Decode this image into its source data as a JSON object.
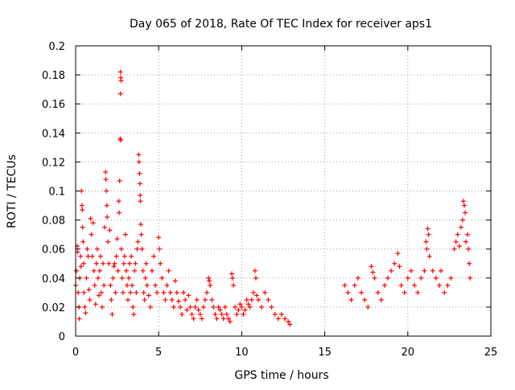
{
  "chart_data": {
    "type": "scatter",
    "title": "Day 065 of 2018, Rate Of TEC Index for receiver aps1",
    "xlabel": "GPS time / hours",
    "ylabel": "ROTI / TECUs",
    "xlim": [
      0,
      25
    ],
    "ylim": [
      0,
      0.2
    ],
    "x_ticks": [
      0,
      5,
      10,
      15,
      20,
      25
    ],
    "y_ticks": [
      0,
      0.02,
      0.04,
      0.06,
      0.08,
      0.1,
      0.12,
      0.14,
      0.16,
      0.18,
      0.2
    ],
    "x_tick_labels": [
      "0",
      "5",
      "10",
      "15",
      "20",
      "25"
    ],
    "y_tick_labels": [
      "0",
      "0.02",
      "0.04",
      "0.06",
      "0.08",
      "0.1",
      "0.12",
      "0.14",
      "0.16",
      "0.18",
      "0.2"
    ],
    "grid": true,
    "marker": "+",
    "color": "#ff0000",
    "series": [
      {
        "points": [
          [
            0.0,
            0.035
          ],
          [
            0.05,
            0.045
          ],
          [
            0.1,
            0.062
          ],
          [
            0.12,
            0.058
          ],
          [
            0.15,
            0.03
          ],
          [
            0.2,
            0.02
          ],
          [
            0.22,
            0.012
          ],
          [
            0.25,
            0.04
          ],
          [
            0.3,
            0.055
          ],
          [
            0.32,
            0.048
          ],
          [
            0.35,
            0.1
          ],
          [
            0.38,
            0.09
          ],
          [
            0.4,
            0.087
          ],
          [
            0.42,
            0.075
          ],
          [
            0.45,
            0.065
          ],
          [
            0.48,
            0.05
          ],
          [
            0.5,
            0.03
          ],
          [
            0.55,
            0.02
          ],
          [
            0.6,
            0.016
          ],
          [
            0.65,
            0.04
          ],
          [
            0.7,
            0.06
          ],
          [
            0.75,
            0.055
          ],
          [
            0.8,
            0.032
          ],
          [
            0.85,
            0.025
          ],
          [
            0.9,
            0.081
          ],
          [
            0.95,
            0.07
          ],
          [
            1.0,
            0.055
          ],
          [
            1.05,
            0.078
          ],
          [
            1.1,
            0.045
          ],
          [
            1.15,
            0.035
          ],
          [
            1.2,
            0.022
          ],
          [
            1.25,
            0.05
          ],
          [
            1.3,
            0.06
          ],
          [
            1.35,
            0.04
          ],
          [
            1.4,
            0.028
          ],
          [
            1.45,
            0.045
          ],
          [
            1.5,
            0.055
          ],
          [
            1.55,
            0.03
          ],
          [
            1.6,
            0.02
          ],
          [
            1.65,
            0.05
          ],
          [
            1.7,
            0.035
          ],
          [
            1.75,
            0.075
          ],
          [
            1.8,
            0.113
          ],
          [
            1.82,
            0.108
          ],
          [
            1.85,
            0.1
          ],
          [
            1.88,
            0.09
          ],
          [
            1.9,
            0.082
          ],
          [
            1.95,
            0.065
          ],
          [
            2.0,
            0.05
          ],
          [
            2.05,
            0.073
          ],
          [
            2.1,
            0.035
          ],
          [
            2.15,
            0.025
          ],
          [
            2.2,
            0.015
          ],
          [
            2.25,
            0.04
          ],
          [
            2.3,
            0.048
          ],
          [
            2.35,
            0.05
          ],
          [
            2.4,
            0.03
          ],
          [
            2.45,
            0.055
          ],
          [
            2.5,
            0.067
          ],
          [
            2.55,
            0.045
          ],
          [
            2.6,
            0.093
          ],
          [
            2.62,
            0.085
          ],
          [
            2.65,
            0.107
          ],
          [
            2.7,
            0.182
          ],
          [
            2.72,
            0.178
          ],
          [
            2.74,
            0.176
          ],
          [
            2.7,
            0.167
          ],
          [
            2.68,
            0.136
          ],
          [
            2.72,
            0.135
          ],
          [
            2.75,
            0.06
          ],
          [
            2.8,
            0.04
          ],
          [
            2.85,
            0.03
          ],
          [
            2.9,
            0.05
          ],
          [
            2.95,
            0.055
          ],
          [
            3.0,
            0.07
          ],
          [
            3.05,
            0.045
          ],
          [
            3.1,
            0.035
          ],
          [
            3.15,
            0.025
          ],
          [
            3.2,
            0.04
          ],
          [
            3.25,
            0.05
          ],
          [
            3.3,
            0.03
          ],
          [
            3.35,
            0.055
          ],
          [
            3.4,
            0.035
          ],
          [
            3.45,
            0.02
          ],
          [
            3.5,
            0.015
          ],
          [
            3.55,
            0.045
          ],
          [
            3.6,
            0.05
          ],
          [
            3.65,
            0.03
          ],
          [
            3.7,
            0.06
          ],
          [
            3.75,
            0.065
          ],
          [
            3.8,
            0.125
          ],
          [
            3.82,
            0.12
          ],
          [
            3.85,
            0.112
          ],
          [
            3.87,
            0.105
          ],
          [
            3.88,
            0.097
          ],
          [
            3.9,
            0.093
          ],
          [
            3.92,
            0.077
          ],
          [
            3.95,
            0.07
          ],
          [
            4.0,
            0.06
          ],
          [
            4.05,
            0.045
          ],
          [
            4.1,
            0.03
          ],
          [
            4.15,
            0.025
          ],
          [
            4.2,
            0.04
          ],
          [
            4.25,
            0.05
          ],
          [
            4.3,
            0.035
          ],
          [
            4.4,
            0.028
          ],
          [
            4.5,
            0.02
          ],
          [
            4.6,
            0.045
          ],
          [
            4.7,
            0.055
          ],
          [
            4.8,
            0.035
          ],
          [
            4.9,
            0.03
          ],
          [
            5.0,
            0.068
          ],
          [
            5.05,
            0.06
          ],
          [
            5.1,
            0.05
          ],
          [
            5.2,
            0.04
          ],
          [
            5.3,
            0.03
          ],
          [
            5.4,
            0.025
          ],
          [
            5.5,
            0.035
          ],
          [
            5.6,
            0.045
          ],
          [
            5.7,
            0.03
          ],
          [
            5.8,
            0.025
          ],
          [
            5.9,
            0.02
          ],
          [
            6.0,
            0.038
          ],
          [
            6.1,
            0.03
          ],
          [
            6.2,
            0.024
          ],
          [
            6.3,
            0.02
          ],
          [
            6.4,
            0.015
          ],
          [
            6.5,
            0.03
          ],
          [
            6.6,
            0.025
          ],
          [
            6.7,
            0.018
          ],
          [
            6.8,
            0.028
          ],
          [
            6.9,
            0.02
          ],
          [
            7.0,
            0.015
          ],
          [
            7.1,
            0.012
          ],
          [
            7.2,
            0.02
          ],
          [
            7.3,
            0.025
          ],
          [
            7.4,
            0.018
          ],
          [
            7.5,
            0.015
          ],
          [
            7.6,
            0.012
          ],
          [
            7.7,
            0.02
          ],
          [
            7.8,
            0.025
          ],
          [
            7.9,
            0.03
          ],
          [
            8.0,
            0.04
          ],
          [
            8.05,
            0.038
          ],
          [
            8.1,
            0.035
          ],
          [
            8.2,
            0.025
          ],
          [
            8.3,
            0.02
          ],
          [
            8.4,
            0.015
          ],
          [
            8.5,
            0.012
          ],
          [
            8.6,
            0.02
          ],
          [
            8.7,
            0.018
          ],
          [
            8.8,
            0.015
          ],
          [
            8.9,
            0.012
          ],
          [
            9.0,
            0.02
          ],
          [
            9.1,
            0.015
          ],
          [
            9.2,
            0.012
          ],
          [
            9.3,
            0.01
          ],
          [
            9.4,
            0.043
          ],
          [
            9.45,
            0.04
          ],
          [
            9.5,
            0.035
          ],
          [
            9.6,
            0.02
          ],
          [
            9.7,
            0.015
          ],
          [
            9.8,
            0.018
          ],
          [
            9.9,
            0.022
          ],
          [
            10.0,
            0.02
          ],
          [
            10.1,
            0.015
          ],
          [
            10.2,
            0.018
          ],
          [
            10.3,
            0.025
          ],
          [
            10.4,
            0.022
          ],
          [
            10.5,
            0.02
          ],
          [
            10.6,
            0.025
          ],
          [
            10.7,
            0.03
          ],
          [
            10.8,
            0.045
          ],
          [
            10.85,
            0.04
          ],
          [
            10.9,
            0.028
          ],
          [
            11.0,
            0.025
          ],
          [
            11.2,
            0.02
          ],
          [
            11.4,
            0.03
          ],
          [
            11.6,
            0.025
          ],
          [
            11.8,
            0.02
          ],
          [
            12.0,
            0.015
          ],
          [
            12.2,
            0.012
          ],
          [
            12.4,
            0.015
          ],
          [
            12.6,
            0.012
          ],
          [
            12.8,
            0.01
          ],
          [
            12.9,
            0.008
          ],
          [
            16.2,
            0.035
          ],
          [
            16.4,
            0.03
          ],
          [
            16.6,
            0.025
          ],
          [
            16.8,
            0.035
          ],
          [
            17.0,
            0.04
          ],
          [
            17.2,
            0.03
          ],
          [
            17.4,
            0.025
          ],
          [
            17.6,
            0.02
          ],
          [
            17.8,
            0.048
          ],
          [
            17.9,
            0.044
          ],
          [
            18.0,
            0.04
          ],
          [
            18.2,
            0.03
          ],
          [
            18.4,
            0.025
          ],
          [
            18.6,
            0.035
          ],
          [
            18.8,
            0.04
          ],
          [
            19.0,
            0.045
          ],
          [
            19.2,
            0.05
          ],
          [
            19.4,
            0.057
          ],
          [
            19.5,
            0.048
          ],
          [
            19.6,
            0.035
          ],
          [
            19.8,
            0.03
          ],
          [
            20.0,
            0.04
          ],
          [
            20.2,
            0.045
          ],
          [
            20.4,
            0.035
          ],
          [
            20.6,
            0.03
          ],
          [
            20.8,
            0.04
          ],
          [
            21.0,
            0.045
          ],
          [
            21.1,
            0.065
          ],
          [
            21.15,
            0.06
          ],
          [
            21.2,
            0.074
          ],
          [
            21.25,
            0.07
          ],
          [
            21.3,
            0.055
          ],
          [
            21.5,
            0.045
          ],
          [
            21.7,
            0.04
          ],
          [
            21.9,
            0.035
          ],
          [
            22.0,
            0.045
          ],
          [
            22.2,
            0.03
          ],
          [
            22.4,
            0.035
          ],
          [
            22.6,
            0.04
          ],
          [
            22.8,
            0.06
          ],
          [
            22.9,
            0.065
          ],
          [
            23.0,
            0.07
          ],
          [
            23.1,
            0.062
          ],
          [
            23.2,
            0.075
          ],
          [
            23.3,
            0.08
          ],
          [
            23.35,
            0.093
          ],
          [
            23.4,
            0.09
          ],
          [
            23.45,
            0.085
          ],
          [
            23.5,
            0.065
          ],
          [
            23.6,
            0.07
          ],
          [
            23.65,
            0.06
          ],
          [
            23.7,
            0.05
          ],
          [
            23.75,
            0.04
          ]
        ]
      }
    ]
  }
}
